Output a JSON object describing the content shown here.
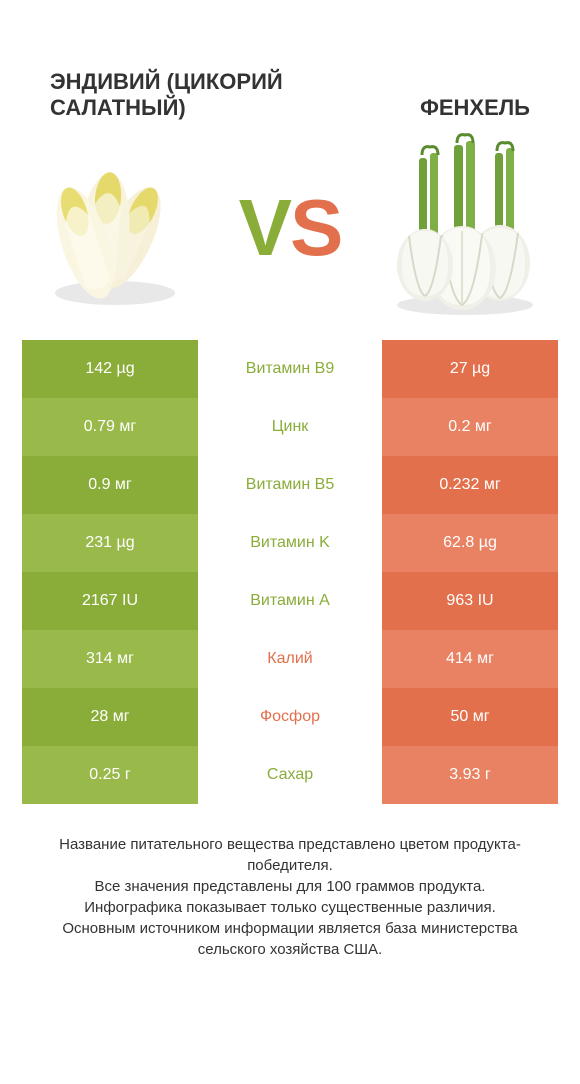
{
  "header": {
    "left_title": "ЭНДИВИЙ (ЦИКОРИЙ САЛАТНЫЙ)",
    "right_title": "ФЕНХЕЛЬ",
    "vs_v": "V",
    "vs_s": "S"
  },
  "colors": {
    "green": "#8aad3a",
    "green_alt": "#99b94a",
    "orange": "#e2704d",
    "orange_alt": "#e88262",
    "background": "#ffffff",
    "text": "#333333"
  },
  "table": {
    "rows": [
      {
        "left": "142 µg",
        "mid": "Витамин B9",
        "right": "27 µg",
        "winner": "left"
      },
      {
        "left": "0.79 мг",
        "mid": "Цинк",
        "right": "0.2 мг",
        "winner": "left"
      },
      {
        "left": "0.9 мг",
        "mid": "Витамин B5",
        "right": "0.232 мг",
        "winner": "left"
      },
      {
        "left": "231 µg",
        "mid": "Витамин K",
        "right": "62.8 µg",
        "winner": "left"
      },
      {
        "left": "2167 IU",
        "mid": "Витамин A",
        "right": "963 IU",
        "winner": "left"
      },
      {
        "left": "314 мг",
        "mid": "Калий",
        "right": "414 мг",
        "winner": "right"
      },
      {
        "left": "28 мг",
        "mid": "Фосфор",
        "right": "50 мг",
        "winner": "right"
      },
      {
        "left": "0.25 г",
        "mid": "Сахар",
        "right": "3.93 г",
        "winner": "left"
      }
    ]
  },
  "footer": {
    "line1": "Название питательного вещества представлено цветом продукта-победителя.",
    "line2": "Все значения представлены для 100 граммов продукта.",
    "line3": "Инфографика показывает только существенные различия.",
    "line4": "Основным источником информации является база министерства сельского хозяйства США."
  },
  "icons": {
    "left": "endive-icon",
    "right": "fennel-icon"
  }
}
